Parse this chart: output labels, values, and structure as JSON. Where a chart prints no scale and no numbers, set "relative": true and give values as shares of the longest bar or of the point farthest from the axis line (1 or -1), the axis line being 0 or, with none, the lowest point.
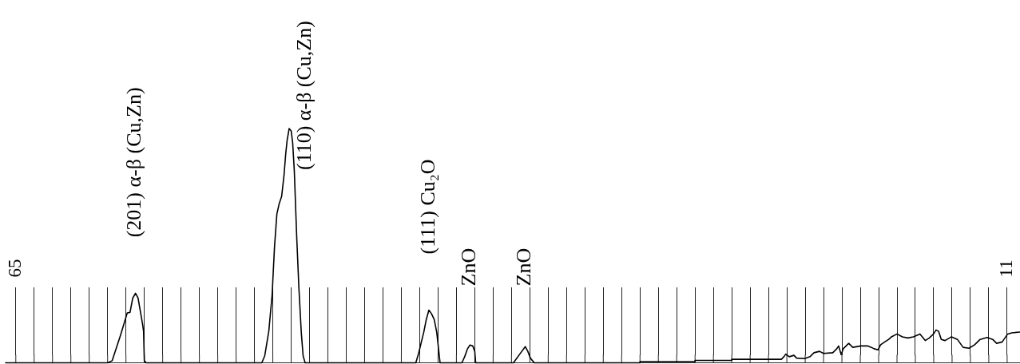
{
  "chart_data": {
    "type": "line",
    "relative": true,
    "color": "#000000",
    "xlim": [
      65.6,
      10.3
    ],
    "xticks": [
      65,
      {
        "value": 64,
        "label": null
      },
      {
        "value": 63,
        "label": null
      },
      {
        "value": 62,
        "label": null
      },
      {
        "value": 61,
        "label": null
      },
      {
        "value": 60,
        "label": null
      },
      {
        "value": 59,
        "label": null
      },
      {
        "value": 58,
        "label": null
      },
      {
        "value": 57,
        "label": null
      },
      {
        "value": 56,
        "label": null
      },
      {
        "value": 55,
        "label": null
      },
      {
        "value": 54,
        "label": null
      },
      {
        "value": 53,
        "label": null
      },
      {
        "value": 52,
        "label": null
      },
      {
        "value": 51,
        "label": null
      },
      {
        "value": 50,
        "label": null
      },
      {
        "value": 49,
        "label": null
      },
      {
        "value": 48,
        "label": null
      },
      {
        "value": 47,
        "label": null
      },
      {
        "value": 46,
        "label": null
      },
      {
        "value": 45,
        "label": null
      },
      {
        "value": 44,
        "label": null
      },
      {
        "value": 43,
        "label": null
      },
      {
        "value": 42,
        "label": null
      },
      {
        "value": 41,
        "label": null
      },
      {
        "value": 40,
        "label": null
      },
      {
        "value": 39,
        "label": null
      },
      {
        "value": 38,
        "label": null
      },
      {
        "value": 37,
        "label": null
      },
      {
        "value": 36,
        "label": null
      },
      {
        "value": 35,
        "label": null
      },
      {
        "value": 34,
        "label": null
      },
      {
        "value": 33,
        "label": null
      },
      {
        "value": 32,
        "label": null
      },
      {
        "value": 31,
        "label": null
      },
      {
        "value": 30,
        "label": null
      },
      {
        "value": 29,
        "label": null
      },
      {
        "value": 28,
        "label": null
      },
      {
        "value": 27,
        "label": null
      },
      {
        "value": 26,
        "label": null
      },
      {
        "value": 25,
        "label": null
      },
      {
        "value": 24,
        "label": null
      },
      {
        "value": 23,
        "label": null
      },
      {
        "value": 22,
        "label": null
      },
      {
        "value": 21,
        "label": null
      },
      {
        "value": 20,
        "label": null
      },
      {
        "value": 19,
        "label": null
      },
      {
        "value": 18,
        "label": null
      },
      {
        "value": 17,
        "label": null
      },
      {
        "value": 16,
        "label": null
      },
      {
        "value": 15,
        "label": null
      },
      {
        "value": 14,
        "label": null
      },
      {
        "value": 13,
        "label": null
      },
      {
        "value": 12,
        "label": null
      },
      11
    ],
    "x": [
      65.54,
      60.0,
      59.75,
      59.3,
      59.08,
      58.93,
      58.78,
      58.63,
      58.48,
      58.34,
      58.19,
      58.09,
      58.04,
      58.0,
      57.9,
      51.6,
      51.44,
      51.22,
      51.04,
      50.91,
      50.78,
      50.65,
      50.52,
      50.39,
      50.3,
      50.22,
      50.11,
      50.0,
      49.92,
      49.83,
      49.7,
      49.58,
      49.45,
      49.35,
      49.24,
      43.21,
      43.06,
      42.92,
      42.78,
      42.64,
      42.5,
      42.36,
      42.21,
      42.07,
      41.96,
      41.89,
      40.7,
      40.55,
      40.4,
      40.26,
      40.11,
      40.0,
      39.95,
      37.89,
      37.75,
      37.54,
      37.25,
      37.11,
      36.97,
      36.76,
      31.0,
      31.0,
      28.0,
      28.0,
      26.0,
      26.0,
      23.3,
      23.16,
      23.06,
      22.87,
      22.61,
      22.47,
      22.03,
      21.74,
      21.52,
      21.22,
      21.0,
      20.5,
      20.28,
      20.18,
      20.04,
      19.93,
      19.63,
      19.41,
      18.97,
      18.61,
      18.4,
      18.25,
      18.04,
      17.89,
      17.67,
      17.45,
      17.3,
      17.0,
      16.71,
      16.41,
      16.11,
      15.75,
      15.46,
      15.24,
      15.01,
      14.87,
      14.73,
      14.59,
      14.38,
      14.03,
      13.71,
      13.4,
      13.08,
      12.77,
      12.47,
      12.09,
      11.79,
      11.57,
      11.27,
      10.97,
      10.75,
      10.32
    ],
    "values": [
      0,
      0,
      0.009,
      0.117,
      0.174,
      0.213,
      0.215,
      0.276,
      0.297,
      0.276,
      0.208,
      0.162,
      0.134,
      0.009,
      0,
      0,
      0.03,
      0.134,
      0.288,
      0.492,
      0.635,
      0.68,
      0.71,
      0.8,
      0.89,
      0.95,
      1.0,
      0.99,
      0.94,
      0.82,
      0.54,
      0.32,
      0.13,
      0.03,
      0,
      0,
      0.04,
      0.085,
      0.13,
      0.185,
      0.225,
      0.21,
      0.185,
      0.13,
      0.05,
      0,
      0,
      0.026,
      0.059,
      0.076,
      0.072,
      0.049,
      0,
      0,
      0.015,
      0.038,
      0.069,
      0.049,
      0.02,
      0,
      0,
      0.005,
      0.005,
      0.01,
      0.01,
      0.015,
      0.015,
      0.026,
      0.037,
      0.026,
      0.032,
      0.02,
      0.018,
      0.026,
      0.043,
      0.049,
      0.04,
      0.043,
      0.06,
      0.072,
      0.035,
      0.06,
      0.083,
      0.066,
      0.072,
      0.072,
      0.066,
      0.06,
      0.055,
      0.077,
      0.089,
      0.1,
      0.111,
      0.123,
      0.111,
      0.106,
      0.111,
      0.123,
      0.095,
      0.106,
      0.123,
      0.14,
      0.134,
      0.1,
      0.095,
      0.111,
      0.1,
      0.066,
      0.062,
      0.077,
      0.1,
      0.108,
      0.1,
      0.083,
      0.089,
      0.123,
      0.128,
      0.131
    ],
    "annotations": [
      {
        "text": "(201) α-β (Cu,Zn)",
        "x": 58.48,
        "y": 0.297
      },
      {
        "text": "(110) α-β (Cu,Zn)",
        "x": 50.11,
        "y": 1.0
      },
      {
        "text": "(111) Cu₂O",
        "x": 42.5,
        "y": 0.225
      },
      {
        "text": "ZnO",
        "x": 40.26,
        "y": 0.076
      },
      {
        "text": "ZnO",
        "x": 37.25,
        "y": 0.069
      }
    ]
  }
}
